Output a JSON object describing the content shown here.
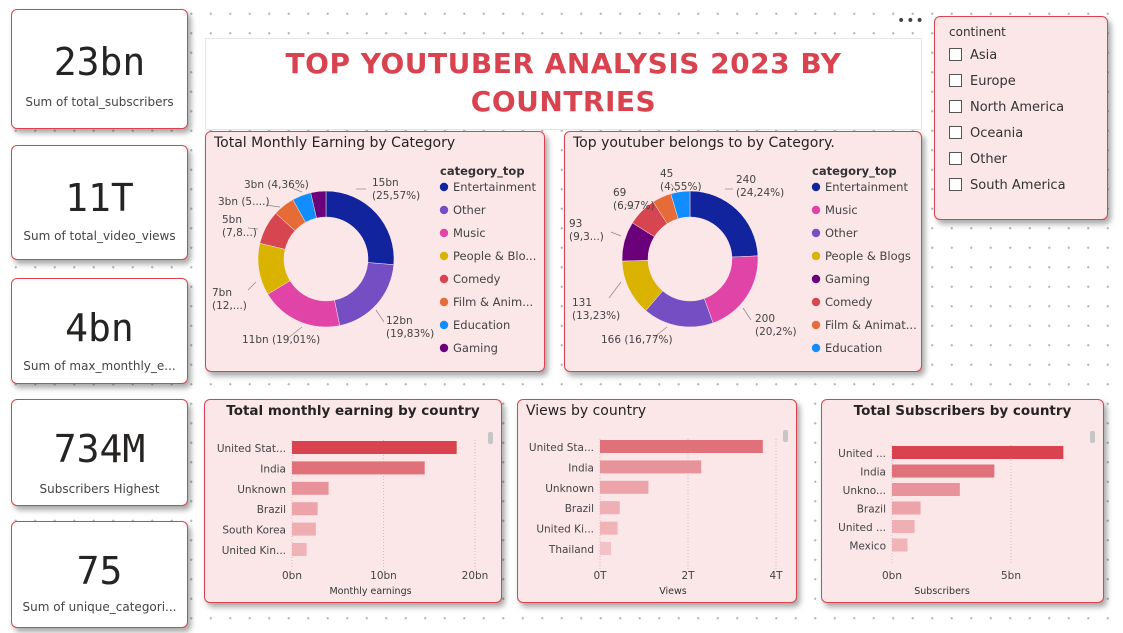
{
  "title": "TOP YOUTUBER ANALYSIS 2023 BY COUNTRIES",
  "more_options": "•••",
  "kpis": [
    {
      "value": "23bn",
      "label": "Sum of total_subscribers"
    },
    {
      "value": "11T",
      "label": "Sum of total_video_views"
    },
    {
      "value": "4bn",
      "label": "Sum of max_monthly_e..."
    },
    {
      "value": "734M",
      "label": "Subscribers Highest"
    },
    {
      "value": "75",
      "label": "Sum of unique_categori..."
    }
  ],
  "slicer": {
    "title": "continent",
    "options": [
      "Asia",
      "Europe",
      "North America",
      "Oceania",
      "Other",
      "South America"
    ]
  },
  "chart_data": [
    {
      "type": "pie",
      "title": "Total Monthly Earning by Category",
      "legend_title": "category_top",
      "legend_position": "right",
      "categories": [
        "Entertainment",
        "Other",
        "Music",
        "People & Blo...",
        "Comedy",
        "Film & Anim...",
        "Education",
        "Gaming"
      ],
      "values": [
        25.57,
        19.83,
        19.01,
        12.0,
        7.8,
        5.0,
        4.36,
        3.5
      ],
      "colors": [
        "#12239e",
        "#744ec2",
        "#e044a7",
        "#d9b300",
        "#d64550",
        "#e66c37",
        "#118dff",
        "#6b007b"
      ],
      "data_labels": [
        [
          "15bn",
          "(25,57%)"
        ],
        [
          "12bn",
          "(19,83%)"
        ],
        [
          "11bn (19,01%)"
        ],
        [
          "7bn",
          "(12,...)"
        ],
        [
          "5bn",
          "(7,8...)"
        ],
        [
          "3bn (5....)"
        ],
        [
          "3bn (4,36%)"
        ]
      ]
    },
    {
      "type": "pie",
      "title": "Top youtuber belongs to by Category.",
      "legend_title": "category_top",
      "legend_position": "right",
      "categories": [
        "Entertainment",
        "Music",
        "Other",
        "People & Blogs",
        "Gaming",
        "Comedy",
        "Film & Animat...",
        "Education"
      ],
      "values": [
        240,
        200,
        166,
        131,
        93,
        69,
        45,
        45
      ],
      "colors": [
        "#12239e",
        "#e044a7",
        "#744ec2",
        "#d9b300",
        "#6b007b",
        "#d64550",
        "#e66c37",
        "#118dff"
      ],
      "data_labels": [
        [
          "240",
          "(24,24%)"
        ],
        [
          "200",
          "(20,2%)"
        ],
        [
          "166 (16,77%)"
        ],
        [
          "131",
          "(13,23%)"
        ],
        [
          "93",
          "(9,3...)"
        ],
        [
          "69",
          "(6,97%)"
        ],
        [
          "45",
          "(4,55%)"
        ]
      ]
    },
    {
      "type": "bar",
      "orientation": "horizontal",
      "title": "Total monthly earning by country",
      "categories": [
        "United Stat...",
        "India",
        "Unknown",
        "Brazil",
        "South Korea",
        "United Kin..."
      ],
      "values": [
        18,
        14.5,
        4,
        2.8,
        2.6,
        1.6
      ],
      "xlim": [
        0,
        20
      ],
      "ticks": [
        "0bn",
        "10bn",
        "20bn"
      ],
      "xlabel": "Monthly earnings",
      "colors": [
        "#d9434f",
        "#e07079",
        "#e8939a",
        "#eca3a9",
        "#efacb1",
        "#f0b3b8"
      ]
    },
    {
      "type": "bar",
      "orientation": "horizontal",
      "title": "Views by country",
      "categories": [
        "United Sta...",
        "India",
        "Unknown",
        "Brazil",
        "United Ki...",
        "Thailand"
      ],
      "values": [
        3.7,
        2.3,
        1.1,
        0.45,
        0.4,
        0.25
      ],
      "xlim": [
        0,
        4
      ],
      "ticks": [
        "0T",
        "2T",
        "4T"
      ],
      "xlabel": "Views",
      "colors": [
        "#e07079",
        "#e8939a",
        "#eca3a9",
        "#efb0b5",
        "#f0b3b8",
        "#f3c2c6"
      ]
    },
    {
      "type": "bar",
      "orientation": "horizontal",
      "title": "Total Subscribers by country",
      "categories": [
        "United ...",
        "India",
        "Unkno...",
        "Brazil",
        "United ...",
        "Mexico"
      ],
      "values": [
        7.2,
        4.3,
        2.85,
        1.2,
        0.95,
        0.65
      ],
      "xlim": [
        0,
        10
      ],
      "ticks": [
        "0bn",
        "5bn"
      ],
      "xlabel": "Subscribers",
      "colors": [
        "#d9434f",
        "#e07079",
        "#e8939a",
        "#eca3a9",
        "#efb0b5",
        "#f0b3b8"
      ]
    }
  ]
}
